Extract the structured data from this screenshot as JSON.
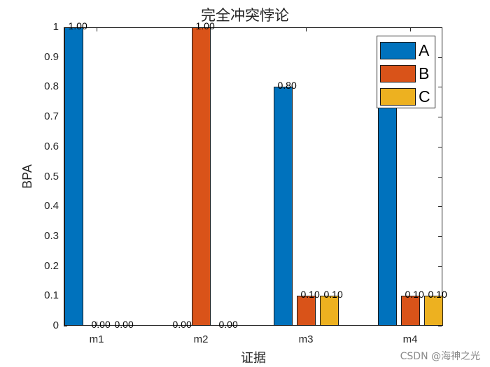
{
  "chart_data": {
    "type": "bar",
    "title": "完全冲突悖论",
    "xlabel": "证据",
    "ylabel": "BPA",
    "categories": [
      "m1",
      "m2",
      "m3",
      "m4"
    ],
    "series": [
      {
        "name": "A",
        "color": "#0072BD",
        "values": [
          1.0,
          0.0,
          0.8,
          0.8
        ]
      },
      {
        "name": "B",
        "color": "#D95319",
        "values": [
          0.0,
          1.0,
          0.1,
          0.1
        ]
      },
      {
        "name": "C",
        "color": "#EDB120",
        "values": [
          0.0,
          0.0,
          0.1,
          0.1
        ]
      }
    ],
    "data_labels": {
      "m1": [
        "1.00",
        "0.00",
        "0.00"
      ],
      "m2": [
        "0.00",
        "1.00",
        "0.00"
      ],
      "m3": [
        "0.80",
        "0.10",
        "0.10"
      ],
      "m4": [
        "0.80",
        "0.10",
        "0.10"
      ]
    },
    "ylim": [
      0,
      1
    ],
    "yticks": [
      "0",
      "0.1",
      "0.2",
      "0.3",
      "0.4",
      "0.5",
      "0.6",
      "0.7",
      "0.8",
      "0.9",
      "1"
    ],
    "grid": false,
    "legend_position": "top-right"
  },
  "watermark": "CSDN @海神之光"
}
